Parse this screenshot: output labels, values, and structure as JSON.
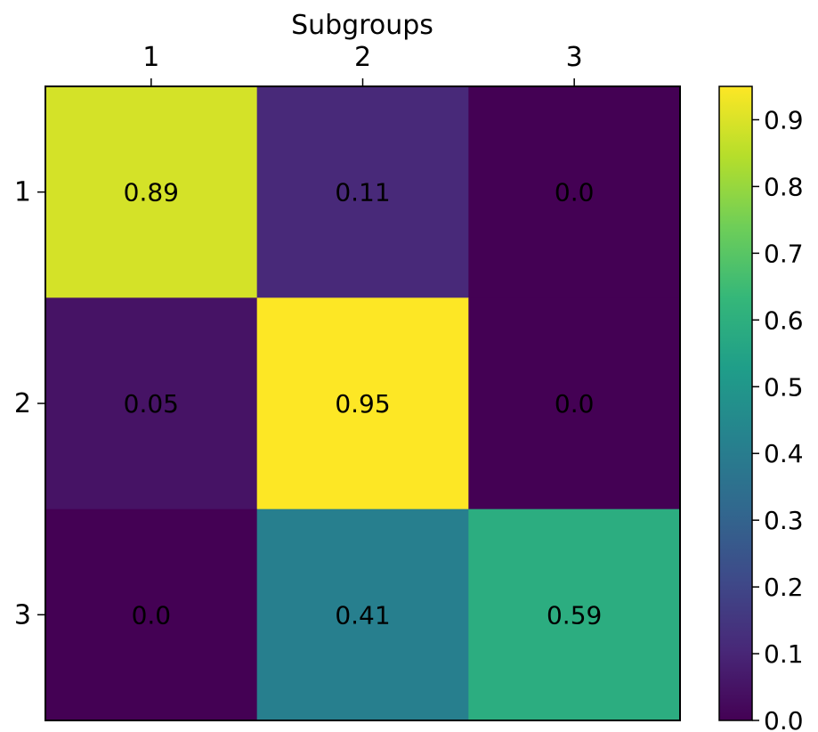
{
  "chart_data": {
    "type": "heatmap",
    "title": "",
    "xlabel": "Subgroups",
    "ylabel": "",
    "x_tick_labels": [
      "1",
      "2",
      "3"
    ],
    "y_tick_labels": [
      "1",
      "2",
      "3"
    ],
    "values": [
      [
        0.89,
        0.11,
        0.0
      ],
      [
        0.05,
        0.95,
        0.0
      ],
      [
        0.0,
        0.41,
        0.59
      ]
    ],
    "cell_labels": [
      [
        "0.89",
        "0.11",
        "0.0"
      ],
      [
        "0.05",
        "0.95",
        "0.0"
      ],
      [
        "0.0",
        "0.41",
        "0.59"
      ]
    ],
    "colormap": "viridis",
    "vmin": 0.0,
    "vmax": 0.95,
    "colorbar": {
      "ticks": [
        0.0,
        0.1,
        0.2,
        0.3,
        0.4,
        0.5,
        0.6,
        0.7,
        0.8,
        0.9
      ],
      "tick_labels": [
        "0.0",
        "0.1",
        "0.2",
        "0.3",
        "0.4",
        "0.5",
        "0.6",
        "0.7",
        "0.8",
        "0.9"
      ],
      "placement": "right"
    },
    "x_axis_position": "top",
    "grid": false
  }
}
